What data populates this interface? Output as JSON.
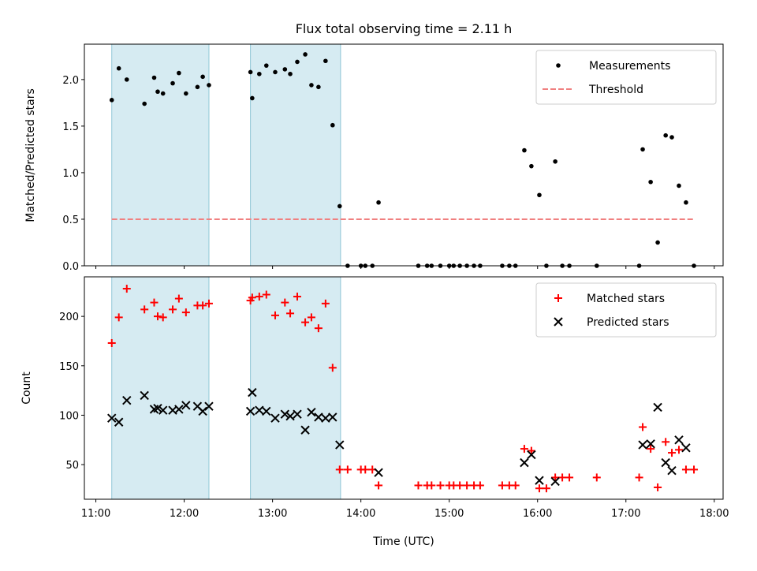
{
  "chart_data": {
    "type": "scatter",
    "title": "Flux total observing time = 2.11 h",
    "xlabel": "Time (UTC)",
    "x_range": [
      10.87,
      18.1
    ],
    "x_ticks": [
      "11:00",
      "12:00",
      "13:00",
      "14:00",
      "15:00",
      "16:00",
      "17:00",
      "18:00"
    ],
    "x_tick_values": [
      11,
      12,
      13,
      14,
      15,
      16,
      17,
      18
    ],
    "shaded_intervals": [
      [
        11.18,
        12.28
      ],
      [
        12.75,
        13.77
      ]
    ],
    "shade_color": "#add8e6",
    "panels": [
      {
        "ylabel": "Matched/Predicted stars",
        "ylim": [
          0,
          2.38
        ],
        "y_ticks": [
          "0.0",
          "0.5",
          "1.0",
          "1.5",
          "2.0"
        ],
        "y_tick_values": [
          0,
          0.5,
          1.0,
          1.5,
          2.0
        ],
        "legend": {
          "location": "upper right",
          "entries": [
            "Measurements",
            "Threshold"
          ]
        },
        "threshold": {
          "name": "Threshold",
          "y": 0.5,
          "x_from": 11.18,
          "x_to": 17.77,
          "color": "#f08080",
          "style": "dashed"
        },
        "series": [
          {
            "name": "Measurements",
            "marker": "dot",
            "color": "#000000",
            "x": [
              11.18,
              11.26,
              11.35,
              11.55,
              11.66,
              11.7,
              11.76,
              11.87,
              11.94,
              12.02,
              12.15,
              12.21,
              12.28,
              12.75,
              12.77,
              12.85,
              12.93,
              13.03,
              13.14,
              13.2,
              13.28,
              13.37,
              13.44,
              13.52,
              13.6,
              13.68,
              13.76,
              13.85,
              14.0,
              14.05,
              14.13,
              14.2,
              14.65,
              14.75,
              14.8,
              14.9,
              15.0,
              15.05,
              15.12,
              15.2,
              15.28,
              15.35,
              15.6,
              15.68,
              15.75,
              15.85,
              15.93,
              16.02,
              16.1,
              16.2,
              16.28,
              16.36,
              16.67,
              17.15,
              17.19,
              17.28,
              17.36,
              17.45,
              17.52,
              17.6,
              17.68,
              17.77
            ],
            "y": [
              1.78,
              2.12,
              2.0,
              1.74,
              2.02,
              1.87,
              1.85,
              1.96,
              2.07,
              1.85,
              1.92,
              2.03,
              1.94,
              2.08,
              1.8,
              2.06,
              2.15,
              2.08,
              2.11,
              2.06,
              2.19,
              2.27,
              1.94,
              1.92,
              2.2,
              1.51,
              0.64,
              0.0,
              0.0,
              0.0,
              0.0,
              0.68,
              0.0,
              0.0,
              0.0,
              0.0,
              0.0,
              0.0,
              0.0,
              0.0,
              0.0,
              0.0,
              0.0,
              0.0,
              0.0,
              1.24,
              1.07,
              0.76,
              0.0,
              1.12,
              0.0,
              0.0,
              0.0,
              0.0,
              1.25,
              0.9,
              0.25,
              1.4,
              1.38,
              0.86,
              0.68,
              0.0
            ]
          }
        ]
      },
      {
        "ylabel": "Count",
        "ylim": [
          15,
          240
        ],
        "y_ticks": [
          "50",
          "100",
          "150",
          "200"
        ],
        "y_tick_values": [
          50,
          100,
          150,
          200
        ],
        "legend": {
          "location": "upper right",
          "entries": [
            "Matched stars",
            "Predicted stars"
          ]
        },
        "series": [
          {
            "name": "Matched stars",
            "marker": "plus",
            "color": "#ff0000",
            "x": [
              11.18,
              11.26,
              11.35,
              11.55,
              11.66,
              11.7,
              11.76,
              11.87,
              11.94,
              12.02,
              12.15,
              12.21,
              12.28,
              12.75,
              12.77,
              12.85,
              12.93,
              13.03,
              13.14,
              13.2,
              13.28,
              13.37,
              13.44,
              13.52,
              13.6,
              13.68,
              13.76,
              13.85,
              14.0,
              14.05,
              14.13,
              14.2,
              14.65,
              14.75,
              14.8,
              14.9,
              15.0,
              15.05,
              15.12,
              15.2,
              15.28,
              15.35,
              15.6,
              15.68,
              15.75,
              15.85,
              15.93,
              16.02,
              16.1,
              16.2,
              16.28,
              16.36,
              16.67,
              17.15,
              17.19,
              17.28,
              17.36,
              17.45,
              17.52,
              17.6,
              17.68,
              17.77
            ],
            "y": [
              173,
              199,
              228,
              207,
              214,
              200,
              199,
              207,
              218,
              204,
              211,
              211,
              213,
              216,
              219,
              220,
              222,
              201,
              214,
              203,
              220,
              194,
              199,
              188,
              213,
              148,
              45,
              45,
              45,
              45,
              45,
              29,
              29,
              29,
              29,
              29,
              29,
              29,
              29,
              29,
              29,
              29,
              29,
              29,
              29,
              66,
              64,
              26,
              26,
              37,
              37,
              37,
              37,
              37,
              88,
              66,
              27,
              73,
              62,
              65,
              45,
              45
            ]
          },
          {
            "name": "Predicted stars",
            "marker": "x",
            "color": "#000000",
            "x": [
              11.18,
              11.26,
              11.35,
              11.55,
              11.66,
              11.7,
              11.76,
              11.87,
              11.94,
              12.02,
              12.15,
              12.21,
              12.28,
              12.75,
              12.77,
              12.85,
              12.93,
              13.03,
              13.14,
              13.2,
              13.28,
              13.37,
              13.44,
              13.52,
              13.6,
              13.68,
              13.76,
              14.2,
              15.85,
              15.93,
              16.02,
              16.2,
              17.19,
              17.28,
              17.36,
              17.45,
              17.52,
              17.6,
              17.68
            ],
            "y": [
              97,
              93,
              115,
              120,
              106,
              107,
              105,
              105,
              106,
              110,
              109,
              104,
              109,
              104,
              123,
              105,
              104,
              97,
              101,
              99,
              101,
              85,
              103,
              98,
              97,
              98,
              70,
              42,
              52,
              60,
              34,
              33,
              70,
              71,
              108,
              52,
              44,
              75,
              67
            ]
          }
        ]
      }
    ]
  }
}
